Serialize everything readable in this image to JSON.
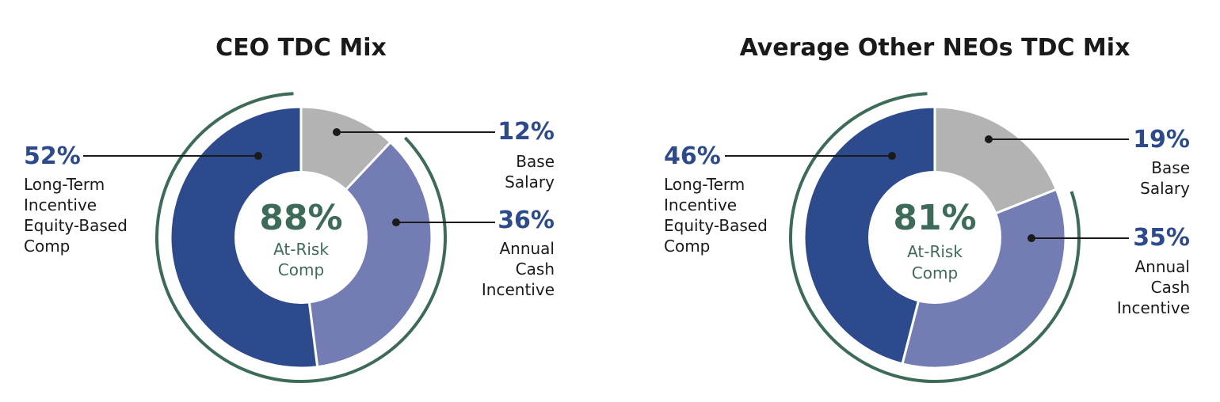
{
  "chart_data": [
    {
      "type": "pie",
      "title": "CEO TDC Mix",
      "center_value": "88%",
      "center_label": [
        "At-Risk",
        "Comp"
      ],
      "slices": [
        {
          "label": "Base Salary",
          "label_lines": [
            "Base",
            "Salary"
          ],
          "value": 12,
          "display": "12%",
          "color": "#b3b3b3"
        },
        {
          "label": "Annual Cash Incentive",
          "label_lines": [
            "Annual",
            "Cash",
            "Incentive"
          ],
          "value": 36,
          "display": "36%",
          "color": "#737db3"
        },
        {
          "label": "Long-Term Incentive Equity-Based Comp",
          "label_lines": [
            "Long-Term",
            "Incentive",
            "Equity-Based",
            "Comp"
          ],
          "value": 52,
          "display": "52%",
          "color": "#2d4a8c"
        }
      ]
    },
    {
      "type": "pie",
      "title": "Average Other NEOs TDC Mix",
      "center_value": "81%",
      "center_label": [
        "At-Risk",
        "Comp"
      ],
      "slices": [
        {
          "label": "Base Salary",
          "label_lines": [
            "Base",
            "Salary"
          ],
          "value": 19,
          "display": "19%",
          "color": "#b3b3b3"
        },
        {
          "label": "Annual Cash Incentive",
          "label_lines": [
            "Annual",
            "Cash",
            "Incentive"
          ],
          "value": 35,
          "display": "35%",
          "color": "#737db3"
        },
        {
          "label": "Long-Term Incentive Equity-Based Comp",
          "label_lines": [
            "Long-Term",
            "Incentive",
            "Equity-Based",
            "Comp"
          ],
          "value": 46,
          "display": "46%",
          "color": "#2d4a8c"
        }
      ]
    }
  ],
  "colors": {
    "ring": "#3e6b58",
    "leader": "#1a1a1a",
    "accent_text": "#2d4a8c"
  }
}
